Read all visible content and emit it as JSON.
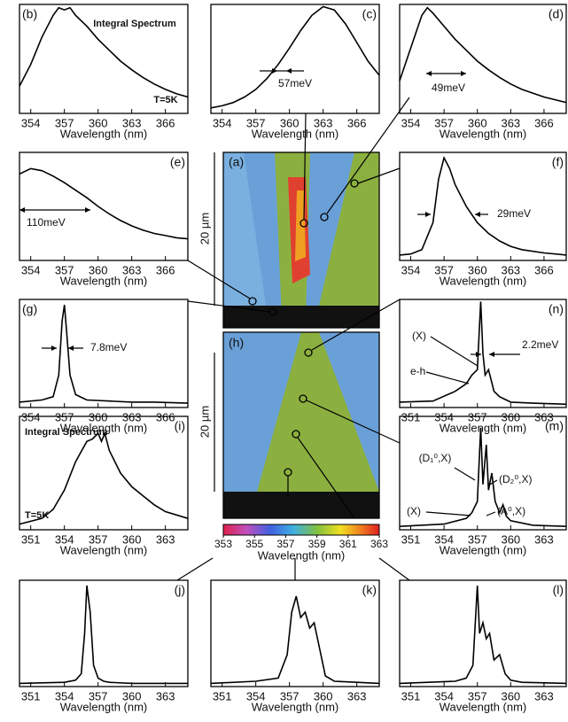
{
  "chart_data": [
    {
      "type": "line",
      "title": "(b)",
      "xlabel": "Wavelength (nm)",
      "xlim": [
        353,
        368
      ],
      "xticks": [
        354,
        357,
        360,
        363,
        366
      ],
      "ylim": [
        0,
        1
      ],
      "x": [
        353,
        354,
        355,
        356,
        356.5,
        357,
        357.5,
        358,
        359,
        360,
        361,
        362,
        363,
        364,
        365,
        366,
        367,
        368
      ],
      "values": [
        0.25,
        0.45,
        0.7,
        0.9,
        0.97,
        0.95,
        0.97,
        0.9,
        0.8,
        0.68,
        0.58,
        0.48,
        0.4,
        0.33,
        0.27,
        0.22,
        0.18,
        0.15
      ],
      "annotations": [
        "Integral Spectrum",
        "T=5K"
      ]
    },
    {
      "type": "line",
      "title": "(c)",
      "xlabel": "Wavelength (nm)",
      "xlim": [
        353,
        368
      ],
      "xticks": [
        354,
        357,
        360,
        363,
        366
      ],
      "ylim": [
        0,
        1
      ],
      "x": [
        353,
        354,
        355,
        356,
        357,
        358,
        359,
        360,
        361,
        362,
        363,
        364,
        365,
        366,
        367,
        368
      ],
      "values": [
        0.05,
        0.07,
        0.1,
        0.15,
        0.22,
        0.32,
        0.45,
        0.6,
        0.76,
        0.9,
        0.98,
        0.95,
        0.82,
        0.65,
        0.48,
        0.35
      ],
      "annotations": [
        "57meV"
      ]
    },
    {
      "type": "line",
      "title": "(d)",
      "xlabel": "Wavelength (nm)",
      "xlim": [
        353,
        368
      ],
      "xticks": [
        354,
        357,
        360,
        363,
        366
      ],
      "ylim": [
        0,
        1
      ],
      "x": [
        353,
        354,
        355,
        355.5,
        356,
        357,
        358,
        359,
        360,
        361,
        362,
        363,
        364,
        366,
        368
      ],
      "values": [
        0.3,
        0.6,
        0.9,
        0.97,
        0.92,
        0.8,
        0.68,
        0.58,
        0.48,
        0.4,
        0.33,
        0.27,
        0.22,
        0.15,
        0.1
      ],
      "annotations": [
        "49meV"
      ]
    },
    {
      "type": "line",
      "title": "(e)",
      "xlabel": "Wavelength (nm)",
      "xlim": [
        353,
        368
      ],
      "xticks": [
        354,
        357,
        360,
        363,
        366
      ],
      "ylim": [
        0,
        1
      ],
      "x": [
        353,
        354,
        355,
        356,
        357,
        358,
        359,
        360,
        361,
        362,
        363,
        364,
        365,
        366,
        367,
        368
      ],
      "values": [
        0.8,
        0.85,
        0.83,
        0.78,
        0.72,
        0.65,
        0.58,
        0.5,
        0.43,
        0.37,
        0.32,
        0.28,
        0.25,
        0.23,
        0.21,
        0.2
      ],
      "annotations": [
        "110meV"
      ]
    },
    {
      "type": "line",
      "title": "(f)",
      "xlabel": "Wavelength (nm)",
      "xlim": [
        353,
        368
      ],
      "xticks": [
        354,
        357,
        360,
        363,
        366
      ],
      "ylim": [
        0,
        1
      ],
      "x": [
        353,
        354,
        355,
        356,
        356.5,
        357,
        357.5,
        358,
        359,
        360,
        361,
        362,
        363,
        364,
        366,
        368
      ],
      "values": [
        0.05,
        0.06,
        0.1,
        0.35,
        0.75,
        0.95,
        0.85,
        0.7,
        0.5,
        0.35,
        0.25,
        0.18,
        0.13,
        0.1,
        0.07,
        0.05
      ],
      "annotations": [
        "29meV"
      ]
    },
    {
      "type": "line",
      "title": "(g)",
      "xlabel": "Wavelength (nm)",
      "xlim": [
        353,
        368
      ],
      "xticks": [
        354,
        357,
        360,
        363,
        366
      ],
      "ylim": [
        0,
        1
      ],
      "x": [
        353,
        355,
        356,
        356.5,
        356.8,
        357,
        357.2,
        357.5,
        358,
        359,
        361,
        363,
        365,
        368
      ],
      "values": [
        0.05,
        0.07,
        0.1,
        0.3,
        0.8,
        0.95,
        0.7,
        0.3,
        0.12,
        0.07,
        0.06,
        0.05,
        0.05,
        0.04
      ],
      "annotations": [
        "7.8meV"
      ]
    },
    {
      "type": "line",
      "title": "(n)",
      "xlabel": "Wavelength (nm)",
      "xlim": [
        350,
        365
      ],
      "xticks": [
        351,
        354,
        357,
        360,
        363
      ],
      "ylim": [
        0,
        1
      ],
      "x": [
        350,
        353,
        355,
        356,
        356.5,
        357,
        357.3,
        357.5,
        357.7,
        358,
        358.5,
        359,
        360,
        362,
        365
      ],
      "values": [
        0.05,
        0.06,
        0.15,
        0.22,
        0.3,
        0.35,
        0.98,
        0.5,
        0.3,
        0.35,
        0.15,
        0.1,
        0.05,
        0.04,
        0.03
      ],
      "annotations": [
        "(X)",
        "2.2meV",
        "e-h"
      ]
    },
    {
      "type": "line",
      "title": "(i)",
      "xlabel": "Wavelength (nm)",
      "xlim": [
        350,
        365
      ],
      "xticks": [
        351,
        354,
        357,
        360,
        363
      ],
      "ylim": [
        0,
        1
      ],
      "x": [
        350,
        352,
        353,
        354,
        355,
        356,
        356.5,
        357,
        357.3,
        357.6,
        358,
        359,
        360,
        361,
        362,
        363,
        365
      ],
      "values": [
        0.05,
        0.1,
        0.18,
        0.35,
        0.6,
        0.78,
        0.8,
        0.85,
        0.78,
        0.85,
        0.7,
        0.5,
        0.38,
        0.3,
        0.22,
        0.16,
        0.1
      ],
      "annotations": [
        "Integral Spectrum",
        "T=5K"
      ]
    },
    {
      "type": "line",
      "title": "(m)",
      "xlabel": "Wavelength (nm)",
      "xlim": [
        350,
        365
      ],
      "xticks": [
        351,
        354,
        357,
        360,
        363
      ],
      "ylim": [
        0,
        1
      ],
      "x": [
        350,
        354,
        356,
        356.5,
        357,
        357.3,
        357.5,
        357.8,
        358,
        358.3,
        358.6,
        359,
        359.3,
        359.6,
        360,
        362,
        365
      ],
      "values": [
        0.03,
        0.05,
        0.1,
        0.15,
        0.25,
        0.9,
        0.4,
        0.75,
        0.35,
        0.5,
        0.25,
        0.15,
        0.22,
        0.12,
        0.08,
        0.04,
        0.03
      ],
      "annotations": [
        "(D₁⁰,X)",
        "(D₂⁰,X)",
        "(A⁰,X)",
        "(X)"
      ]
    },
    {
      "type": "line",
      "title": "(j)",
      "xlabel": "Wavelength (nm)",
      "xlim": [
        350,
        365
      ],
      "xticks": [
        351,
        354,
        357,
        360,
        363
      ],
      "ylim": [
        0,
        1
      ],
      "x": [
        350,
        354,
        355,
        355.5,
        355.8,
        356,
        356.3,
        356.6,
        357,
        357.5,
        358,
        360,
        365
      ],
      "values": [
        0.03,
        0.04,
        0.06,
        0.12,
        0.5,
        0.95,
        0.7,
        0.2,
        0.08,
        0.05,
        0.04,
        0.03,
        0.03
      ],
      "annotations": []
    },
    {
      "type": "line",
      "title": "(k)",
      "xlabel": "Wavelength (nm)",
      "xlim": [
        350,
        365
      ],
      "xticks": [
        351,
        354,
        357,
        360,
        363
      ],
      "ylim": [
        0,
        1
      ],
      "x": [
        350,
        354,
        356,
        356.8,
        357.2,
        357.6,
        358,
        358.4,
        358.8,
        359.2,
        359.6,
        360.2,
        361,
        363,
        365
      ],
      "values": [
        0.03,
        0.05,
        0.08,
        0.3,
        0.7,
        0.85,
        0.65,
        0.7,
        0.55,
        0.6,
        0.4,
        0.1,
        0.05,
        0.04,
        0.03
      ],
      "annotations": []
    },
    {
      "type": "line",
      "title": "(l)",
      "xlabel": "Wavelength (nm)",
      "xlim": [
        350,
        365
      ],
      "xticks": [
        351,
        354,
        357,
        360,
        363
      ],
      "ylim": [
        0,
        1
      ],
      "x": [
        350,
        355,
        356,
        356.6,
        357,
        357.2,
        357.5,
        357.8,
        358.1,
        358.5,
        359,
        359.5,
        360,
        361,
        365
      ],
      "values": [
        0.03,
        0.05,
        0.08,
        0.2,
        0.95,
        0.5,
        0.6,
        0.45,
        0.5,
        0.25,
        0.3,
        0.12,
        0.06,
        0.04,
        0.03
      ],
      "annotations": []
    }
  ],
  "maps": [
    {
      "label": "(a)",
      "scale": "20 µm"
    },
    {
      "label": "(h)",
      "scale": "20 µm"
    }
  ],
  "colorbar": {
    "lim": [
      353,
      363
    ],
    "ticks": [
      353,
      355,
      357,
      359,
      361,
      363
    ],
    "label": "Wavelength (nm)"
  }
}
